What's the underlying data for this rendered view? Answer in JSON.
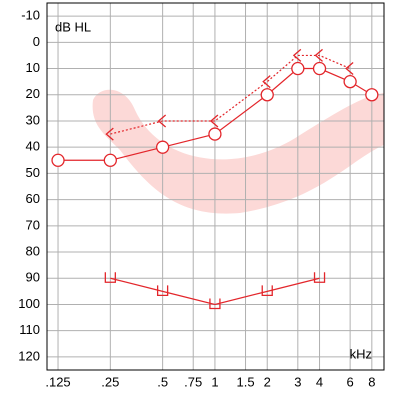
{
  "chart_data": {
    "type": "audiogram",
    "y_label": "dB HL",
    "x_label": "kHz",
    "log_x": true,
    "y_inverted": true,
    "grid": true,
    "xlim": [
      0.108,
      9.4
    ],
    "ylim": [
      -15,
      125
    ],
    "xticks": [
      {
        "value": 0.125,
        "label": ".125"
      },
      {
        "value": 0.25,
        "label": ".25"
      },
      {
        "value": 0.5,
        "label": ".5"
      },
      {
        "value": 0.75,
        "label": ".75"
      },
      1,
      1.5,
      2,
      3,
      4,
      6,
      8
    ],
    "yticks": [
      -10,
      0,
      10,
      20,
      30,
      40,
      50,
      60,
      70,
      80,
      90,
      100,
      110,
      120
    ],
    "series": [
      {
        "color": "#e3262b",
        "marker": "circle",
        "line": "solid",
        "x": [
          0.125,
          0.25,
          0.5,
          1,
          2,
          3,
          4,
          6,
          8
        ],
        "values": [
          45,
          45,
          40,
          35,
          20,
          10,
          10,
          15,
          20
        ]
      },
      {
        "color": "#e3262b",
        "marker": "bracket",
        "line": "dotted",
        "x": [
          0.25,
          0.5,
          1,
          2,
          3,
          4,
          6
        ],
        "values": [
          35,
          30,
          30,
          15,
          5,
          5,
          10
        ]
      },
      {
        "color": "#e3262b",
        "marker": "u",
        "line": "solid",
        "x": [
          0.25,
          0.5,
          1,
          2,
          4
        ],
        "values": [
          90,
          95,
          100,
          95,
          90
        ]
      }
    ]
  }
}
